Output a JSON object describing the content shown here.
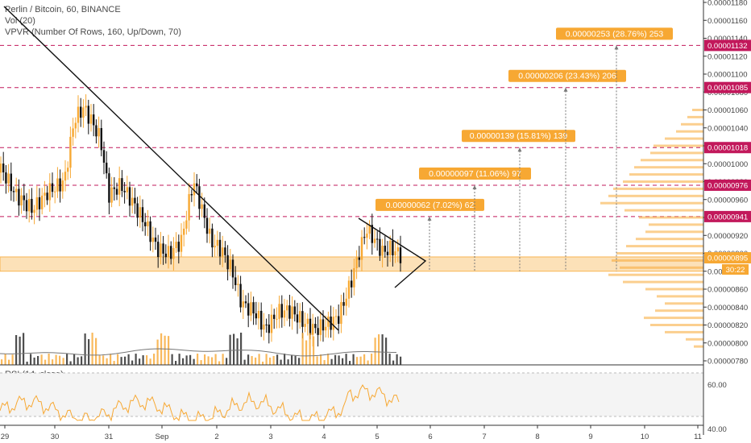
{
  "header": {
    "title": "Perlin / Bitcoin, 60, BINANCE",
    "vol": "Vol (20)",
    "vpvr": "VPVR (Number Of Rows, 160, Up/Down, 70)"
  },
  "rsi": {
    "label": "RSI (14, close)",
    "levels": [
      "60.00",
      "40.00"
    ]
  },
  "colors": {
    "candle": "#f7a833",
    "resistance": "#c2185b",
    "zone": "#f7a833",
    "line": "#111111"
  },
  "chart_data": {
    "type": "candlestick",
    "x_ticks": [
      "29",
      "30",
      "31",
      "Sep",
      "2",
      "3",
      "4",
      "5",
      "6",
      "7",
      "8",
      "9",
      "10",
      "11"
    ],
    "y_ticks": [
      "0.00001180",
      "0.00001160",
      "0.00001140",
      "0.00001120",
      "0.00001100",
      "0.00001080",
      "0.00001060",
      "0.00001040",
      "0.00001020",
      "0.00001000",
      "0.00000980",
      "0.00000960",
      "0.00000940",
      "0.00000920",
      "0.00000900",
      "0.00000880",
      "0.00000860",
      "0.00000840",
      "0.00000820",
      "0.00000800",
      "0.00000780"
    ],
    "ylim": [
      7.8e-06,
      1.18e-05
    ],
    "current_price": "0.00000895",
    "countdown": "30:22",
    "support_zone": [
      8.8e-06,
      8.96e-06
    ],
    "resistance_levels": [
      {
        "price": "0.00000941",
        "value": 9.41e-06
      },
      {
        "price": "0.00000976",
        "value": 9.76e-06
      },
      {
        "price": "0.00001018",
        "value": 1.018e-05
      },
      {
        "price": "0.00001085",
        "value": 1.085e-05
      },
      {
        "price": "0.00001132",
        "value": 1.132e-05
      }
    ],
    "targets": [
      {
        "label": "0.00000062 (7.02%) 62",
        "top": 9.41e-06
      },
      {
        "label": "0.00000097 (11.06%) 97",
        "top": 9.76e-06
      },
      {
        "label": "0.00000139 (15.81%) 139",
        "top": 1.018e-05
      },
      {
        "label": "0.00000206 (23.43%) 206",
        "top": 1.085e-05
      },
      {
        "label": "0.00000253 (28.76%) 253",
        "top": 1.132e-05
      }
    ]
  }
}
